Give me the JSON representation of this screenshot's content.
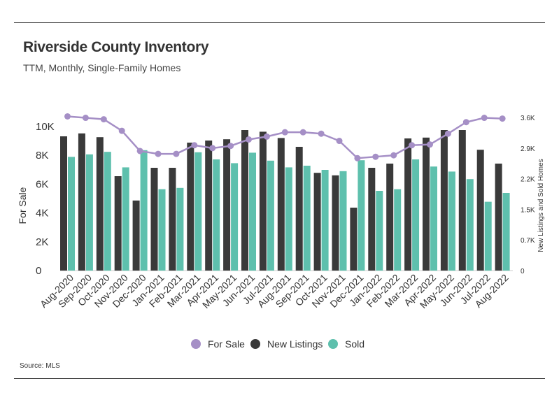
{
  "title": "Riverside County Inventory",
  "subtitle": "TTM, Monthly, Single-Family Homes",
  "source": "Source:  MLS",
  "colors": {
    "for_sale": "#a58fc6",
    "new_listings": "#3a3a3a",
    "sold": "#5ec0ad",
    "rule": "#333333"
  },
  "chart_data": {
    "type": "bar",
    "categories": [
      "Aug-2020",
      "Sep-2020",
      "Oct-2020",
      "Nov-2020",
      "Dec-2020",
      "Jan-2021",
      "Feb-2021",
      "Mar-2021",
      "Apr-2021",
      "May-2021",
      "Jun-2021",
      "Jul-2021",
      "Aug-2021",
      "Sep-2021",
      "Oct-2021",
      "Nov-2021",
      "Dec-2021",
      "Jan-2022",
      "Feb-2022",
      "Mar-2022",
      "Apr-2022",
      "May-2022",
      "Jun-2022",
      "Jul-2022",
      "Aug-2022"
    ],
    "y_left": {
      "label": "For Sale",
      "ticks": [
        "0",
        "2K",
        "4K",
        "6K",
        "8K",
        "10K"
      ],
      "range": [
        0,
        11500
      ]
    },
    "y_right": {
      "label": "New Listings and Sold Homes",
      "ticks": [
        "0",
        "0.7K",
        "1.5K",
        "2.2K",
        "2.9K",
        "3.6K"
      ],
      "range": [
        0,
        3950
      ]
    },
    "series": [
      {
        "name": "New Listings",
        "type": "bar",
        "axis": "right",
        "values": [
          3200,
          3270,
          3180,
          2250,
          1670,
          2450,
          2450,
          3050,
          3100,
          3130,
          3350,
          3310,
          3160,
          2950,
          2330,
          2270,
          1500,
          2450,
          2550,
          3150,
          3170,
          3350,
          3350,
          2880,
          2550
        ]
      },
      {
        "name": "Sold",
        "type": "bar",
        "axis": "right",
        "values": [
          2710,
          2770,
          2830,
          2460,
          2870,
          1940,
          1970,
          2820,
          2650,
          2560,
          2810,
          2620,
          2460,
          2500,
          2400,
          2370,
          2630,
          1900,
          1940,
          2650,
          2480,
          2360,
          2180,
          1640,
          1850
        ]
      },
      {
        "name": "For Sale",
        "type": "line",
        "axis": "left",
        "values": [
          10700,
          10600,
          10500,
          9700,
          8300,
          8100,
          8100,
          8700,
          8500,
          8650,
          9100,
          9300,
          9600,
          9600,
          9500,
          9000,
          7800,
          7900,
          8000,
          8700,
          8750,
          9500,
          10300,
          10600,
          10550
        ]
      }
    ],
    "legend": {
      "position": "bottom",
      "items": [
        "For Sale",
        "New Listings",
        "Sold"
      ]
    }
  }
}
